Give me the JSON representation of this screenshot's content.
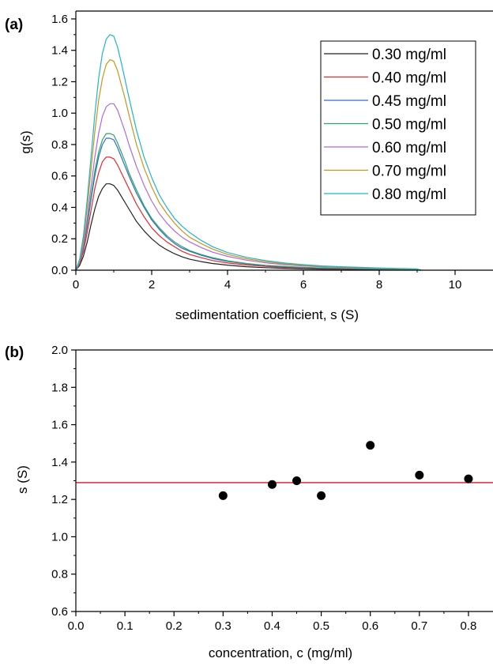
{
  "chart_data": [
    {
      "type": "line",
      "panel_label": "(a)",
      "xlabel": "sedimentation coefficient, s (S)",
      "ylabel": "g(s)",
      "xlim": [
        0,
        11
      ],
      "ylim": [
        0,
        1.65
      ],
      "x_ticks": [
        0,
        2,
        4,
        6,
        8,
        10
      ],
      "x_tick_labels": [
        "0",
        "2",
        "4",
        "6",
        "8",
        "10"
      ],
      "y_ticks": [
        0.0,
        0.2,
        0.4,
        0.6,
        0.8,
        1.0,
        1.2,
        1.4,
        1.6
      ],
      "y_tick_labels": [
        "0.0",
        "0.2",
        "0.4",
        "0.6",
        "0.8",
        "1.0",
        "1.2",
        "1.4",
        "1.6"
      ],
      "legend_position": "top-right",
      "grid": false,
      "x": [
        0,
        0.1,
        0.2,
        0.3,
        0.4,
        0.5,
        0.6,
        0.7,
        0.8,
        0.9,
        1.0,
        1.1,
        1.2,
        1.3,
        1.4,
        1.6,
        1.8,
        2.0,
        2.2,
        2.4,
        2.6,
        2.8,
        3.0,
        3.3,
        3.6,
        4.0,
        4.5,
        5.0,
        5.5,
        6.0,
        6.5,
        7.0,
        7.5,
        8.0,
        8.5,
        9.0,
        9.1
      ],
      "series": [
        {
          "name": "0.30 mg/ml",
          "color": "#222222",
          "values": [
            0,
            0.03,
            0.09,
            0.18,
            0.29,
            0.39,
            0.47,
            0.52,
            0.55,
            0.55,
            0.54,
            0.51,
            0.47,
            0.43,
            0.39,
            0.31,
            0.25,
            0.2,
            0.16,
            0.13,
            0.105,
            0.085,
            0.07,
            0.055,
            0.043,
            0.032,
            0.022,
            0.016,
            0.012,
            0.009,
            0.007,
            0.006,
            0.005,
            0.004,
            0.003,
            0.002,
            0
          ]
        },
        {
          "name": "0.40 mg/ml",
          "color": "#e8262d",
          "values": [
            0,
            0.04,
            0.12,
            0.24,
            0.38,
            0.52,
            0.62,
            0.69,
            0.72,
            0.72,
            0.71,
            0.67,
            0.62,
            0.57,
            0.52,
            0.42,
            0.34,
            0.27,
            0.22,
            0.18,
            0.15,
            0.12,
            0.1,
            0.08,
            0.062,
            0.046,
            0.033,
            0.024,
            0.018,
            0.014,
            0.011,
            0.009,
            0.007,
            0.006,
            0.005,
            0.003,
            0
          ]
        },
        {
          "name": "0.45 mg/ml",
          "color": "#2a6ec8",
          "values": [
            0,
            0.05,
            0.14,
            0.28,
            0.45,
            0.6,
            0.72,
            0.8,
            0.84,
            0.84,
            0.83,
            0.78,
            0.72,
            0.66,
            0.6,
            0.49,
            0.4,
            0.32,
            0.26,
            0.21,
            0.17,
            0.14,
            0.12,
            0.095,
            0.075,
            0.056,
            0.04,
            0.029,
            0.022,
            0.017,
            0.013,
            0.011,
            0.009,
            0.007,
            0.006,
            0.004,
            0
          ]
        },
        {
          "name": "0.50 mg/ml",
          "color": "#2ea26a",
          "values": [
            0,
            0.05,
            0.15,
            0.3,
            0.47,
            0.63,
            0.75,
            0.83,
            0.87,
            0.87,
            0.86,
            0.81,
            0.75,
            0.69,
            0.62,
            0.51,
            0.41,
            0.33,
            0.27,
            0.22,
            0.18,
            0.15,
            0.125,
            0.1,
            0.08,
            0.06,
            0.043,
            0.031,
            0.024,
            0.018,
            0.014,
            0.012,
            0.01,
            0.008,
            0.006,
            0.004,
            0
          ]
        },
        {
          "name": "0.60 mg/ml",
          "color": "#b06ad6",
          "values": [
            0,
            0.05,
            0.16,
            0.33,
            0.53,
            0.72,
            0.87,
            0.98,
            1.04,
            1.06,
            1.06,
            1.02,
            0.95,
            0.88,
            0.8,
            0.66,
            0.54,
            0.44,
            0.36,
            0.3,
            0.25,
            0.21,
            0.18,
            0.145,
            0.115,
            0.088,
            0.064,
            0.047,
            0.035,
            0.027,
            0.021,
            0.017,
            0.014,
            0.011,
            0.009,
            0.006,
            0
          ]
        },
        {
          "name": "0.70 mg/ml",
          "color": "#c8961e",
          "values": [
            0,
            0.06,
            0.19,
            0.4,
            0.64,
            0.88,
            1.08,
            1.22,
            1.31,
            1.34,
            1.33,
            1.27,
            1.18,
            1.09,
            0.99,
            0.8,
            0.65,
            0.53,
            0.43,
            0.36,
            0.3,
            0.25,
            0.21,
            0.17,
            0.135,
            0.1,
            0.073,
            0.054,
            0.04,
            0.031,
            0.024,
            0.019,
            0.016,
            0.013,
            0.01,
            0.007,
            0
          ]
        },
        {
          "name": "0.80 mg/ml",
          "color": "#21b5c8",
          "values": [
            0,
            0.07,
            0.22,
            0.45,
            0.72,
            0.99,
            1.22,
            1.38,
            1.47,
            1.5,
            1.49,
            1.42,
            1.32,
            1.21,
            1.1,
            0.89,
            0.72,
            0.59,
            0.48,
            0.4,
            0.33,
            0.28,
            0.24,
            0.19,
            0.15,
            0.112,
            0.082,
            0.061,
            0.046,
            0.035,
            0.027,
            0.022,
            0.018,
            0.014,
            0.011,
            0.008,
            0
          ]
        }
      ]
    },
    {
      "type": "scatter",
      "panel_label": "(b)",
      "xlabel": "concentration, c (mg/ml)",
      "ylabel": "s (S)",
      "xlim": [
        0,
        0.85
      ],
      "ylim": [
        0.6,
        2.0
      ],
      "x_ticks": [
        0.0,
        0.1,
        0.2,
        0.3,
        0.4,
        0.5,
        0.6,
        0.7,
        0.8
      ],
      "x_tick_labels": [
        "0.0",
        "0.1",
        "0.2",
        "0.3",
        "0.4",
        "0.5",
        "0.6",
        "0.7",
        "0.8"
      ],
      "y_ticks": [
        0.6,
        0.8,
        1.0,
        1.2,
        1.4,
        1.6,
        1.8,
        2.0
      ],
      "y_tick_labels": [
        "0.6",
        "0.8",
        "1.0",
        "1.2",
        "1.4",
        "1.6",
        "1.8",
        "2.0"
      ],
      "grid": false,
      "points": [
        {
          "x": 0.3,
          "y": 1.22
        },
        {
          "x": 0.4,
          "y": 1.28
        },
        {
          "x": 0.45,
          "y": 1.3
        },
        {
          "x": 0.5,
          "y": 1.22
        },
        {
          "x": 0.6,
          "y": 1.49
        },
        {
          "x": 0.7,
          "y": 1.33
        },
        {
          "x": 0.8,
          "y": 1.31
        }
      ],
      "marker_color": "#000000",
      "reference_line": {
        "y": 1.29,
        "color": "#e8262d"
      }
    }
  ]
}
